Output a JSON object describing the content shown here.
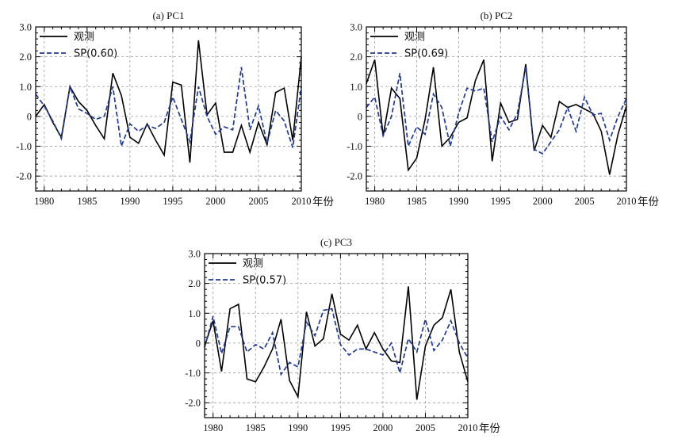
{
  "x_unit_label": "年份",
  "chart_data": [
    {
      "type": "line",
      "title": "(a) PC1",
      "xlim": [
        1979,
        2010
      ],
      "ylim": [
        -2.5,
        3.0
      ],
      "xticks": [
        1980,
        1985,
        1990,
        1995,
        2000,
        2005,
        2010
      ],
      "yticks": [
        -2.0,
        -1.0,
        0,
        1.0,
        2.0,
        3.0
      ],
      "ytick_labels": [
        "-2.0",
        "-1.0",
        "0",
        "1.0",
        "2.0",
        "3.0"
      ],
      "grid": true,
      "legend_position": "top-left",
      "x": [
        1979,
        1980,
        1981,
        1982,
        1983,
        1984,
        1985,
        1986,
        1987,
        1988,
        1989,
        1990,
        1991,
        1992,
        1993,
        1994,
        1995,
        1996,
        1997,
        1998,
        1999,
        2000,
        2001,
        2002,
        2003,
        2004,
        2005,
        2006,
        2007,
        2008,
        2009,
        2010
      ],
      "series": [
        {
          "name": "观测",
          "color": "#000000",
          "style": "solid",
          "values": [
            0.0,
            0.4,
            -0.2,
            -0.7,
            1.0,
            0.5,
            0.2,
            -0.3,
            -0.75,
            1.45,
            0.7,
            -0.7,
            -0.9,
            -0.25,
            -0.8,
            -1.3,
            1.15,
            1.05,
            -1.55,
            2.55,
            0.05,
            0.45,
            -1.2,
            -1.2,
            -0.3,
            -1.2,
            -0.2,
            -0.95,
            0.8,
            0.95,
            -0.8,
            2.0
          ]
        },
        {
          "name": "SP(0.60)",
          "color": "#1f3a93",
          "style": "dashed",
          "values": [
            0.75,
            0.35,
            -0.15,
            -0.75,
            1.0,
            0.25,
            0.1,
            -0.1,
            0.0,
            1.0,
            -1.0,
            -0.25,
            -0.5,
            -0.3,
            -0.4,
            -0.2,
            0.65,
            -0.1,
            -0.85,
            1.0,
            0.0,
            -0.6,
            -0.35,
            -0.45,
            1.65,
            -0.45,
            0.35,
            -0.9,
            0.2,
            -0.15,
            -1.05,
            1.0
          ]
        }
      ]
    },
    {
      "type": "line",
      "title": "(b) PC2",
      "xlim": [
        1979,
        2010
      ],
      "ylim": [
        -2.5,
        3.0
      ],
      "xticks": [
        1980,
        1985,
        1990,
        1995,
        2000,
        2005,
        2010
      ],
      "yticks": [
        -2.0,
        -1.0,
        0,
        1.0,
        2.0,
        3.0
      ],
      "ytick_labels": [
        "-2.0",
        "-1.0",
        "0",
        "1.0",
        "2.0",
        "3.0"
      ],
      "grid": true,
      "legend_position": "top-left",
      "x": [
        1979,
        1980,
        1981,
        1982,
        1983,
        1984,
        1985,
        1986,
        1987,
        1988,
        1989,
        1990,
        1991,
        1992,
        1993,
        1994,
        1995,
        1996,
        1997,
        1998,
        1999,
        2000,
        2001,
        2002,
        2003,
        2004,
        2005,
        2006,
        2007,
        2008,
        2009,
        2010
      ],
      "series": [
        {
          "name": "观测",
          "color": "#000000",
          "style": "solid",
          "values": [
            1.1,
            1.9,
            -0.65,
            0.95,
            0.6,
            -1.8,
            -1.4,
            -0.1,
            1.65,
            -1.0,
            -0.7,
            -0.2,
            -0.05,
            1.2,
            1.9,
            -1.5,
            0.45,
            -0.2,
            -0.1,
            1.75,
            -1.15,
            -0.3,
            -0.7,
            0.5,
            0.3,
            0.4,
            0.25,
            0.1,
            -0.5,
            -1.95,
            -0.6,
            0.35
          ]
        },
        {
          "name": "SP(0.69)",
          "color": "#1f3a93",
          "style": "dashed",
          "values": [
            0.3,
            0.65,
            -0.65,
            0.0,
            1.45,
            -1.0,
            -0.35,
            -0.6,
            0.75,
            0.3,
            -1.0,
            0.1,
            0.95,
            0.85,
            0.95,
            -0.85,
            0.0,
            -0.45,
            0.1,
            1.65,
            -1.1,
            -1.25,
            -0.85,
            -0.45,
            0.3,
            -0.5,
            0.65,
            0.05,
            0.1,
            -0.8,
            0.0,
            0.6
          ]
        }
      ]
    },
    {
      "type": "line",
      "title": "(c) PC3",
      "xlim": [
        1979,
        2010
      ],
      "ylim": [
        -2.5,
        3.0
      ],
      "xticks": [
        1980,
        1985,
        1990,
        1995,
        2000,
        2005,
        2010
      ],
      "yticks": [
        -2.0,
        -1.0,
        0,
        1.0,
        2.0,
        3.0
      ],
      "ytick_labels": [
        "-2.0",
        "-1.0",
        "0",
        "1.0",
        "2.0",
        "3.0"
      ],
      "grid": true,
      "legend_position": "top-left",
      "x": [
        1979,
        1980,
        1981,
        1982,
        1983,
        1984,
        1985,
        1986,
        1987,
        1988,
        1989,
        1990,
        1991,
        1992,
        1993,
        1994,
        1995,
        1996,
        1997,
        1998,
        1999,
        2000,
        2001,
        2002,
        2003,
        2004,
        2005,
        2006,
        2007,
        2008,
        2009,
        2010
      ],
      "series": [
        {
          "name": "观测",
          "color": "#000000",
          "style": "solid",
          "values": [
            -0.1,
            0.75,
            -0.95,
            1.15,
            1.3,
            -1.2,
            -1.3,
            -0.8,
            -0.2,
            0.8,
            -1.25,
            -1.8,
            1.05,
            -0.1,
            0.15,
            1.65,
            0.3,
            0.1,
            0.6,
            -0.2,
            0.35,
            -0.2,
            -0.6,
            -0.65,
            1.9,
            -1.9,
            -0.1,
            0.6,
            0.85,
            1.8,
            -0.3,
            -1.3
          ]
        },
        {
          "name": "SP(0.57)",
          "color": "#1f3a93",
          "style": "dashed",
          "values": [
            -0.15,
            0.9,
            -0.35,
            0.55,
            0.55,
            -0.3,
            -0.05,
            -0.2,
            0.35,
            -1.05,
            -0.65,
            -0.8,
            0.7,
            0.25,
            1.1,
            1.15,
            -0.05,
            -0.4,
            -0.2,
            -0.2,
            -0.3,
            -0.4,
            0.0,
            -1.0,
            0.15,
            -0.3,
            0.8,
            -0.25,
            0.1,
            0.75,
            0.0,
            -0.5
          ]
        }
      ]
    }
  ]
}
